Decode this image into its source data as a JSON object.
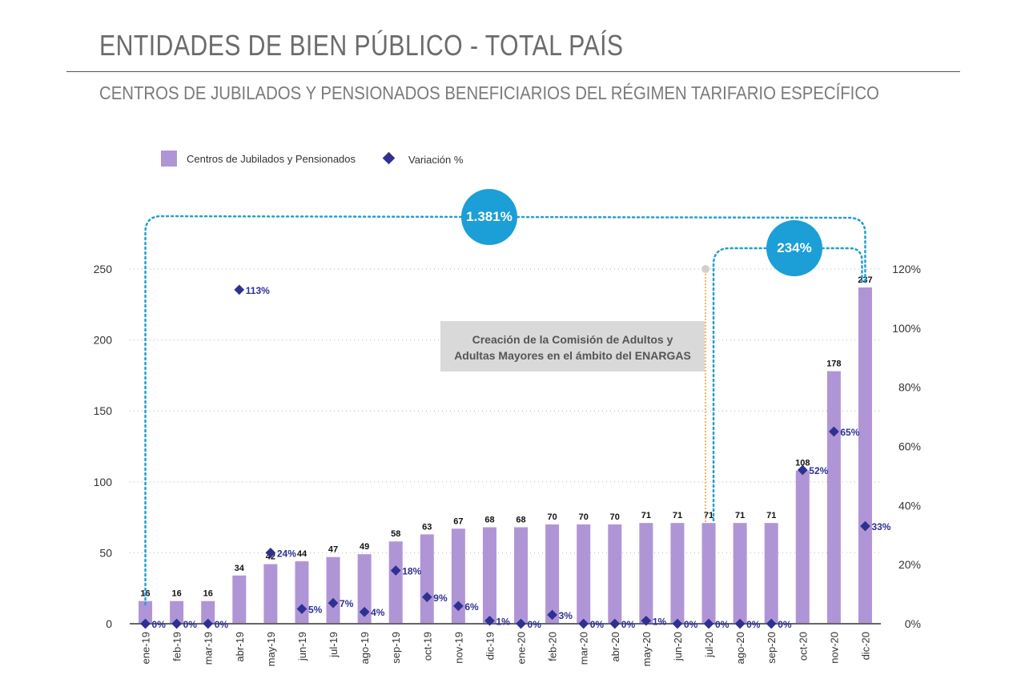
{
  "page": {
    "title": "ENTIDADES DE BIEN PÚBLICO - TOTAL PAÍS",
    "subtitle": "CENTROS DE JUBILADOS Y PENSIONADOS BENEFICIARIOS DEL RÉGIMEN TARIFARIO ESPECÍFICO"
  },
  "chart_data": {
    "type": "bar",
    "categories": [
      "ene-19",
      "feb-19",
      "mar-19",
      "abr-19",
      "may-19",
      "jun-19",
      "jul-19",
      "ago-19",
      "sep-19",
      "oct-19",
      "nov-19",
      "dic-19",
      "ene-20",
      "feb-20",
      "mar-20",
      "abr-20",
      "may-20",
      "jun-20",
      "jul-20",
      "ago-20",
      "sep-20",
      "oct-20",
      "nov-20",
      "dic-20"
    ],
    "series": [
      {
        "name": "Centros de Jubilados y Pensionados",
        "type": "bar",
        "axis": "left",
        "color": "#b095d6",
        "values": [
          16,
          16,
          16,
          34,
          42,
          44,
          47,
          49,
          58,
          63,
          67,
          68,
          68,
          70,
          70,
          70,
          71,
          71,
          71,
          71,
          71,
          108,
          178,
          237
        ]
      },
      {
        "name": "Variación %",
        "type": "scatter",
        "axis": "right",
        "marker": "diamond",
        "color": "#2e3191",
        "values": [
          0,
          0,
          0,
          113,
          24,
          5,
          7,
          4,
          18,
          9,
          6,
          1,
          0,
          3,
          0,
          0,
          1,
          0,
          0,
          0,
          0,
          52,
          65,
          33
        ],
        "labels": [
          "0%",
          "0%",
          "0%",
          "113%",
          "24%",
          "5%",
          "7%",
          "4%",
          "18%",
          "9%",
          "6%",
          "1%",
          "0%",
          "3%",
          "0%",
          "0%",
          "1%",
          "0%",
          "0%",
          "0%",
          "0%",
          "52%",
          "65%",
          "33%"
        ]
      }
    ],
    "left_axis": {
      "ticks": [
        0,
        50,
        100,
        150,
        200,
        250
      ],
      "ylim": [
        0,
        250
      ]
    },
    "right_axis": {
      "ticks": [
        "0%",
        "20%",
        "40%",
        "60%",
        "80%",
        "100%",
        "120%"
      ],
      "ylim": [
        0,
        120
      ]
    },
    "annotations": {
      "note": [
        "Creación de la Comisión de Adultos y",
        "Adultas Mayores en el ámbito del ENARGAS"
      ],
      "note_category": "jul-20",
      "total_growth": {
        "label": "1.381%",
        "from": "ene-19",
        "to": "dic-20"
      },
      "growth_since_note": {
        "label": "234%",
        "from": "jul-20",
        "to": "dic-20"
      }
    },
    "colors": {
      "bar": "#b095d6",
      "diamond": "#2e3191",
      "bubble": "#1b9fd6",
      "note_line": "#f0a030",
      "dotted": "#1b9fd6",
      "grid": "#cccccc"
    },
    "grid": true,
    "legend": "top-left"
  }
}
